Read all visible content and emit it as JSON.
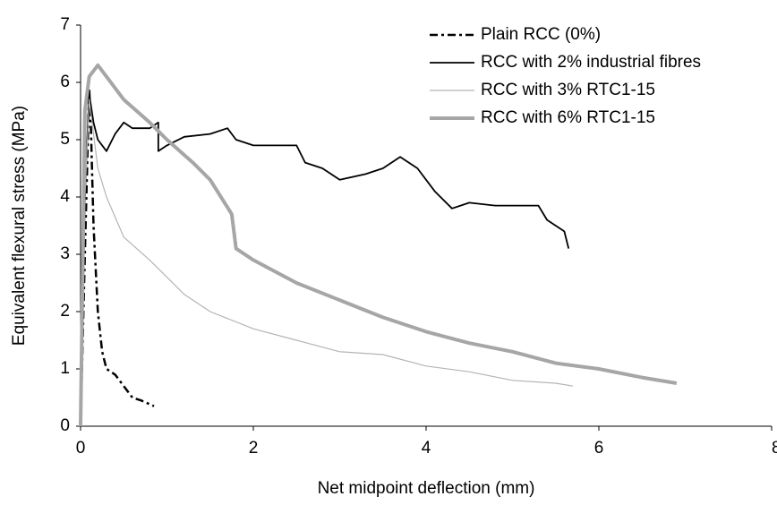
{
  "chart_data": {
    "type": "line",
    "x_label": "Net midpoint deflection (mm)",
    "y_label": "Equivalent flexural stress (MPa)",
    "xlim": [
      0,
      8
    ],
    "xticks": [
      0,
      2,
      4,
      6,
      8
    ],
    "ylim": [
      0,
      7
    ],
    "yticks": [
      0,
      1,
      2,
      3,
      4,
      5,
      6,
      7
    ],
    "grid": false,
    "legend": "upper right",
    "series": [
      {
        "name": "Plain RCC (0%)",
        "color": "#000000",
        "style": "dashdot",
        "width": 2.5,
        "x": [
          0,
          0.05,
          0.1,
          0.12,
          0.15,
          0.2,
          0.25,
          0.3,
          0.4,
          0.5,
          0.6,
          0.7,
          0.85
        ],
        "values": [
          0,
          3,
          5.9,
          5.2,
          3.5,
          2,
          1.3,
          1,
          0.9,
          0.7,
          0.5,
          0.45,
          0.35
        ]
      },
      {
        "name": "RCC with 2% industrial fibres",
        "color": "#000000",
        "style": "solid",
        "width": 1.8,
        "x": [
          0,
          0.05,
          0.1,
          0.15,
          0.2,
          0.3,
          0.4,
          0.5,
          0.6,
          0.8,
          0.9,
          0.9,
          1.0,
          1.2,
          1.5,
          1.7,
          1.8,
          2.0,
          2.3,
          2.5,
          2.6,
          2.8,
          3.0,
          3.3,
          3.5,
          3.7,
          3.9,
          4.0,
          4.1,
          4.3,
          4.5,
          4.8,
          5.0,
          5.3,
          5.4,
          5.6,
          5.65
        ],
        "values": [
          0,
          4,
          5.8,
          5.3,
          5.0,
          4.8,
          5.1,
          5.3,
          5.2,
          5.2,
          5.3,
          4.8,
          4.9,
          5.05,
          5.1,
          5.2,
          5.0,
          4.9,
          4.9,
          4.9,
          4.6,
          4.5,
          4.3,
          4.4,
          4.5,
          4.7,
          4.5,
          4.3,
          4.1,
          3.8,
          3.9,
          3.85,
          3.85,
          3.85,
          3.6,
          3.4,
          3.1
        ]
      },
      {
        "name": "RCC with 3% RTC1-15",
        "color": "#b4b4b4",
        "style": "solid",
        "width": 1.2,
        "x": [
          0,
          0.05,
          0.1,
          0.2,
          0.3,
          0.5,
          0.8,
          1.0,
          1.2,
          1.5,
          2.0,
          2.5,
          3.0,
          3.5,
          4.0,
          4.5,
          5.0,
          5.5,
          5.7
        ],
        "values": [
          0,
          4,
          5.7,
          4.5,
          4.0,
          3.3,
          2.9,
          2.6,
          2.3,
          2.0,
          1.7,
          1.5,
          1.3,
          1.25,
          1.05,
          0.95,
          0.8,
          0.75,
          0.7
        ]
      },
      {
        "name": "RCC with 6% RTC1-15",
        "color": "#a6a6a6",
        "style": "solid",
        "width": 4,
        "x": [
          0,
          0.05,
          0.1,
          0.2,
          0.3,
          0.5,
          0.8,
          1.0,
          1.3,
          1.5,
          1.75,
          1.8,
          2.0,
          2.5,
          3.0,
          3.5,
          4.0,
          4.5,
          5.0,
          5.5,
          6.0,
          6.5,
          6.9
        ],
        "values": [
          0,
          5.5,
          6.1,
          6.3,
          6.1,
          5.7,
          5.3,
          5.0,
          4.6,
          4.3,
          3.7,
          3.1,
          2.9,
          2.5,
          2.2,
          1.9,
          1.65,
          1.45,
          1.3,
          1.1,
          1.0,
          0.85,
          0.75
        ]
      }
    ]
  }
}
